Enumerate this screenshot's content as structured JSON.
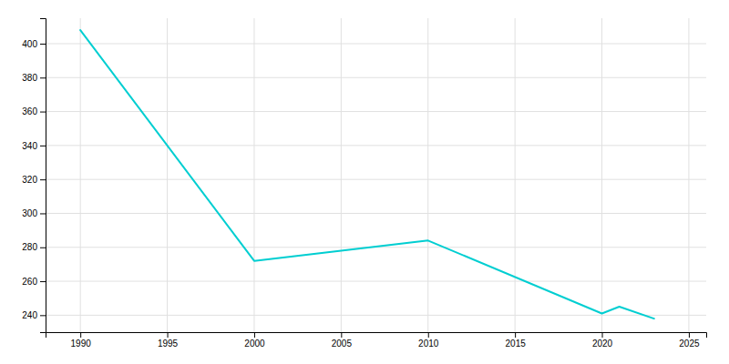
{
  "chart_data": {
    "type": "line",
    "x": [
      1990,
      2000,
      2005,
      2010,
      2020,
      2021,
      2023
    ],
    "values": [
      408,
      272,
      278,
      284,
      241,
      245,
      238
    ],
    "color": "#00CED1",
    "xlim": [
      1988,
      2026
    ],
    "ylim": [
      230,
      415
    ],
    "xticks": [
      1990,
      1995,
      2000,
      2005,
      2010,
      2015,
      2020,
      2025
    ],
    "yticks": [
      240,
      260,
      280,
      300,
      320,
      340,
      360,
      380,
      400
    ],
    "grid": true
  }
}
